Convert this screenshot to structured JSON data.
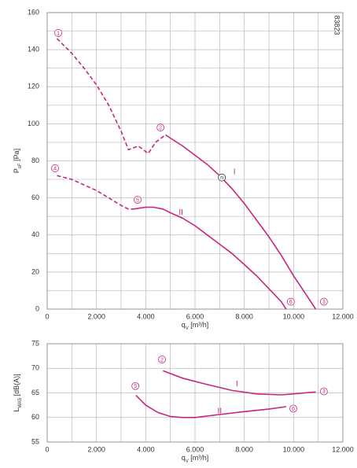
{
  "chart_data": [
    {
      "type": "line",
      "code": "83823",
      "ylabel": [
        "P",
        "sF",
        " [Pa]"
      ],
      "xlabel": [
        "q",
        "V",
        " [m³/h]"
      ],
      "xlim": [
        0,
        12000
      ],
      "ylim": [
        0,
        160
      ],
      "xticks": [
        0,
        {
          "value": 2000,
          "label": "2.000"
        },
        {
          "value": 4000,
          "label": "4.000"
        },
        {
          "value": 6000,
          "label": "6.000"
        },
        {
          "value": 8000,
          "label": "8.000"
        },
        {
          "value": 10000,
          "label": "10.000"
        },
        {
          "value": 12000,
          "label": "12.000"
        }
      ],
      "yticks": [
        0,
        20,
        40,
        60,
        80,
        100,
        120,
        140,
        160
      ],
      "x_minor_grid": [
        1000,
        3000,
        5000,
        7000,
        9000,
        11000
      ],
      "y_minor_grid": [
        10,
        30,
        50,
        70,
        90,
        110,
        130,
        150
      ],
      "series": [
        {
          "color": "#c8257f",
          "dashed": true,
          "x": [
            400,
            1000,
            1500,
            2000,
            2500,
            3000,
            3300,
            3700,
            4100,
            4400,
            4800
          ],
          "values": [
            146,
            138,
            130,
            121,
            110,
            96,
            86,
            88,
            84,
            90,
            94
          ]
        },
        {
          "name": "I",
          "color": "#c8257f",
          "dashed": false,
          "x": [
            4800,
            5500,
            6000,
            6500,
            7000,
            7500,
            8000,
            8500,
            9000,
            9500,
            10000,
            10500,
            10900
          ],
          "values": [
            94,
            88,
            83,
            78,
            72,
            65,
            57,
            48,
            39,
            29,
            18,
            8,
            0
          ]
        },
        {
          "color": "#c8257f",
          "dashed": true,
          "x": [
            400,
            1000,
            1500,
            2000,
            2500,
            3000,
            3300,
            3500
          ],
          "values": [
            72,
            70,
            67,
            64,
            60,
            56,
            54,
            54
          ]
        },
        {
          "name": "II",
          "color": "#c8257f",
          "dashed": false,
          "x": [
            3500,
            4000,
            4300,
            4700,
            5000,
            5500,
            6000,
            6500,
            7000,
            7500,
            8000,
            8500,
            9000,
            9500,
            9700
          ],
          "values": [
            54,
            55,
            55,
            54,
            52,
            49,
            45,
            40,
            35,
            30,
            24,
            18,
            11,
            4,
            0
          ]
        }
      ],
      "curve_labels": [
        {
          "text": "I",
          "x": 7600,
          "y": 74
        },
        {
          "text": "II",
          "x": 5430,
          "y": 52
        }
      ],
      "annotations": [
        {
          "text": "1",
          "x": 450,
          "y": 149,
          "color": "#c8257f"
        },
        {
          "text": "2",
          "x": 4600,
          "y": 98,
          "color": "#c8257f"
        },
        {
          "text": "n",
          "x": 7090,
          "y": 71,
          "color": "#333"
        },
        {
          "text": "3",
          "x": 11230,
          "y": 4,
          "color": "#c8257f"
        },
        {
          "text": "4",
          "x": 320,
          "y": 76,
          "color": "#c8257f"
        },
        {
          "text": "5",
          "x": 3670,
          "y": 59,
          "color": "#c8257f"
        },
        {
          "text": "6",
          "x": 9890,
          "y": 4,
          "color": "#c8257f"
        }
      ]
    },
    {
      "type": "line",
      "ylabel": [
        "L",
        "WA5",
        " [dB(A)]"
      ],
      "xlabel": [
        "q",
        "V",
        " [m³/h]"
      ],
      "xlim": [
        0,
        12000
      ],
      "ylim": [
        55,
        75
      ],
      "xticks": [
        0,
        {
          "value": 2000,
          "label": "2.000"
        },
        {
          "value": 4000,
          "label": "4.000"
        },
        {
          "value": 6000,
          "label": "6.000"
        },
        {
          "value": 8000,
          "label": "8.000"
        },
        {
          "value": 10000,
          "label": "10.000"
        },
        {
          "value": 12000,
          "label": "12.000"
        }
      ],
      "yticks": [
        55,
        60,
        65,
        70,
        75
      ],
      "x_minor_grid": [
        1000,
        3000,
        5000,
        7000,
        9000,
        11000
      ],
      "y_minor_grid": [],
      "series": [
        {
          "name": "I",
          "color": "#c8257f",
          "dashed": false,
          "x": [
            4700,
            5500,
            6500,
            7500,
            8500,
            9500,
            10000,
            10900
          ],
          "values": [
            69.5,
            68,
            66.7,
            65.5,
            64.8,
            64.6,
            64.8,
            65.2
          ]
        },
        {
          "name": "II",
          "color": "#c8257f",
          "dashed": false,
          "x": [
            3600,
            4000,
            4500,
            5000,
            5500,
            6000,
            7000,
            8000,
            9000,
            9700
          ],
          "values": [
            64.5,
            62.5,
            61,
            60.2,
            60,
            60,
            60.6,
            61.2,
            61.7,
            62.2
          ]
        }
      ],
      "curve_labels": [
        {
          "text": "I",
          "x": 7700,
          "y": 66.8
        },
        {
          "text": "II",
          "x": 7000,
          "y": 61.3
        }
      ],
      "annotations": [
        {
          "text": "2",
          "x": 4660,
          "y": 71.8,
          "color": "#c8257f"
        },
        {
          "text": "3",
          "x": 11230,
          "y": 65.3,
          "color": "#c8257f"
        },
        {
          "text": "5",
          "x": 3580,
          "y": 66.4,
          "color": "#c8257f"
        },
        {
          "text": "6",
          "x": 9990,
          "y": 61.8,
          "color": "#c8257f"
        }
      ]
    }
  ]
}
